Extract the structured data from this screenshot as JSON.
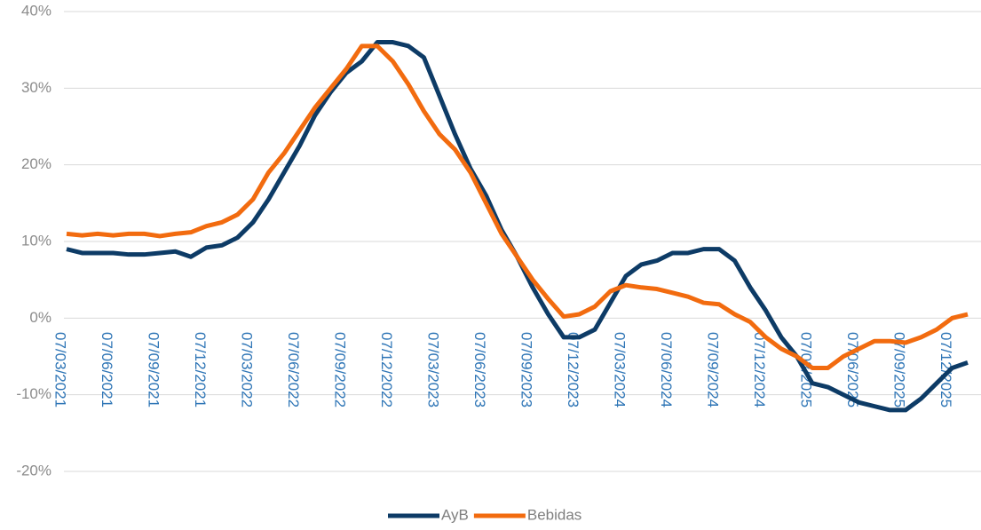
{
  "chart_data": {
    "type": "line",
    "categories": [
      "07/03/2021",
      null,
      null,
      "07/06/2021",
      null,
      null,
      "07/09/2021",
      null,
      null,
      "07/12/2021",
      null,
      null,
      "07/03/2022",
      null,
      null,
      "07/06/2022",
      null,
      null,
      "07/09/2022",
      null,
      null,
      "07/12/2022",
      null,
      null,
      "07/03/2023",
      null,
      null,
      "07/06/2023",
      null,
      null,
      "07/09/2023",
      null,
      null,
      "07/12/2023",
      null,
      null,
      "07/03/2024",
      null,
      null,
      "07/06/2024",
      null,
      null,
      "07/09/2024",
      null,
      null,
      "07/12/2024",
      null,
      null,
      "07/03/2025",
      null,
      null,
      "07/06/2025",
      null,
      null,
      "07/09/2025",
      null,
      null,
      "07/12/2025",
      null
    ],
    "series": [
      {
        "name": "AyB",
        "color": "#0d3b66",
        "values": [
          9,
          8.5,
          8.5,
          8.5,
          8.3,
          8.3,
          8.5,
          8.7,
          8,
          9.2,
          9.5,
          10.5,
          12.5,
          15.5,
          19,
          22.5,
          26.5,
          29.5,
          32,
          33.5,
          36,
          36,
          35.5,
          34,
          29,
          24,
          19.5,
          16,
          11.5,
          8,
          4,
          0.5,
          -2.5,
          -2.5,
          -1.5,
          2,
          5.5,
          7,
          7.5,
          8.5,
          8.5,
          9,
          9,
          7.5,
          4,
          1,
          -2.5,
          -5,
          -8.5,
          -9,
          -10,
          -11,
          -11.5,
          -12,
          -12,
          -10.5,
          -8.5,
          -6.5,
          -5.8
        ]
      },
      {
        "name": "Bebidas",
        "color": "#f26b0f",
        "values": [
          11,
          10.8,
          11,
          10.8,
          11,
          11,
          10.7,
          11,
          11.2,
          12,
          12.5,
          13.5,
          15.5,
          19,
          21.5,
          24.5,
          27.5,
          30,
          32.5,
          35.5,
          35.5,
          33.5,
          30.5,
          27,
          24,
          22,
          19,
          15,
          11,
          8,
          5,
          2.5,
          0.2,
          0.5,
          1.5,
          3.5,
          4.3,
          4,
          3.8,
          3.3,
          2.8,
          2,
          1.8,
          0.5,
          -0.5,
          -2.5,
          -4,
          -5,
          -6.5,
          -6.5,
          -5,
          -4,
          -3,
          -3,
          -3.2,
          -2.5,
          -1.5,
          0,
          0.5
        ]
      }
    ],
    "ylim": [
      -20,
      40
    ],
    "yticks": [
      {
        "value": -20,
        "label": "-20%"
      },
      {
        "value": -10,
        "label": "-10%"
      },
      {
        "value": 0,
        "label": "0%"
      },
      {
        "value": 10,
        "label": "10%"
      },
      {
        "value": 20,
        "label": "20%"
      },
      {
        "value": 30,
        "label": "30%"
      },
      {
        "value": 40,
        "label": "40%"
      }
    ],
    "grid": true,
    "legend": "bottom"
  }
}
